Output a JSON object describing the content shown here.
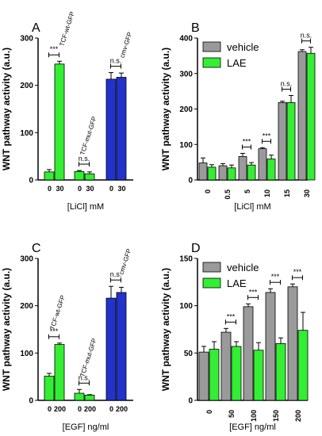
{
  "colors": {
    "green": "#33ee33",
    "blue": "#2233cc",
    "grey": "#9a9a9a",
    "axis": "#000000"
  },
  "chart_data": [
    {
      "id": "A",
      "type": "bar",
      "panel_label": "A",
      "xlabel": "[LiCl] mM",
      "ylabel": "WNT pathway activity (a.u.)",
      "ylim": [
        0,
        300
      ],
      "yticks": [
        "0",
        "100",
        "200",
        "300"
      ],
      "group_labels": [
        "TCF-wt-GFP",
        "TCF-mut-GFP",
        "cmv-GFP"
      ],
      "group_colors": [
        "green",
        "green",
        "blue"
      ],
      "groups": [
        {
          "x": [
            "0",
            "30"
          ],
          "values": [
            17,
            245
          ],
          "errors": [
            5,
            6
          ]
        },
        {
          "x": [
            "0",
            "30"
          ],
          "values": [
            18,
            13
          ],
          "errors": [
            2,
            4
          ]
        },
        {
          "x": [
            "0",
            "30"
          ],
          "values": [
            213,
            217
          ],
          "errors": [
            14,
            9
          ]
        }
      ],
      "significance": [
        "***",
        "n.s.",
        "n.s."
      ]
    },
    {
      "id": "B",
      "type": "bar",
      "panel_label": "B",
      "xlabel": "[LiCl] mM",
      "ylabel": "WNT pathway activity (a.u.)",
      "ylim": [
        0,
        400
      ],
      "yticks": [
        "0",
        "100",
        "200",
        "300",
        "400"
      ],
      "categories": [
        "0",
        "0.5",
        "5",
        "10",
        "15",
        "30"
      ],
      "series": [
        {
          "name": "vehicle",
          "color": "grey",
          "values": [
            48,
            40,
            66,
            88,
            218,
            362
          ],
          "errors": [
            14,
            6,
            9,
            3,
            4,
            5
          ]
        },
        {
          "name": "LAE",
          "color": "green",
          "values": [
            36,
            34,
            42,
            59,
            218,
            357
          ],
          "errors": [
            7,
            8,
            7,
            11,
            20,
            17
          ]
        }
      ],
      "significance": [
        "",
        "",
        "***",
        "***",
        "n.s.",
        "n.s."
      ],
      "legend": "top-left"
    },
    {
      "id": "C",
      "type": "bar",
      "panel_label": "C",
      "xlabel": "[EGF] ng/ml",
      "ylabel": "WNT pathway activity (a.u.)",
      "ylim": [
        0,
        300
      ],
      "yticks": [
        "0",
        "100",
        "200",
        "300"
      ],
      "group_labels": [
        "TCF-wt-GFP",
        "TCF-mut-GFP",
        "cmv-GFP"
      ],
      "group_colors": [
        "green",
        "green",
        "blue"
      ],
      "groups": [
        {
          "x": [
            "0",
            "200"
          ],
          "values": [
            51,
            118
          ],
          "errors": [
            6,
            3
          ]
        },
        {
          "x": [
            "0",
            "200"
          ],
          "values": [
            15,
            11
          ],
          "errors": [
            8,
            1
          ]
        },
        {
          "x": [
            "0",
            "200"
          ],
          "values": [
            216,
            228
          ],
          "errors": [
            25,
            11
          ]
        }
      ],
      "significance": [
        "***",
        "n.s.",
        "n.s."
      ]
    },
    {
      "id": "D",
      "type": "bar",
      "panel_label": "D",
      "xlabel": "[EGF] ng/ml",
      "ylabel": "WNT pathway activity (a.u.)",
      "ylim": [
        0,
        150
      ],
      "yticks": [
        "0",
        "50",
        "100",
        "150"
      ],
      "categories": [
        "0",
        "50",
        "100",
        "150",
        "200"
      ],
      "series": [
        {
          "name": "vehicle",
          "color": "grey",
          "values": [
            51,
            72,
            99,
            114,
            120
          ],
          "errors": [
            6,
            4,
            3,
            4,
            3
          ]
        },
        {
          "name": "LAE",
          "color": "green",
          "values": [
            54,
            57,
            53,
            60,
            74
          ],
          "errors": [
            8,
            5,
            8,
            6,
            19
          ]
        }
      ],
      "significance": [
        "",
        "***",
        "***",
        "***",
        "***"
      ],
      "legend": "top-left"
    }
  ]
}
